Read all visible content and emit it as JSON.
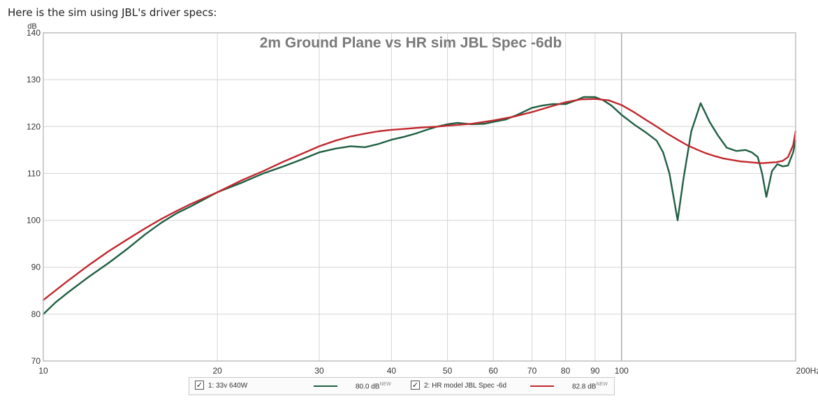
{
  "intro_text": "Here is the sim using JBL's driver specs:",
  "chart_data": {
    "type": "line",
    "title": "2m Ground Plane vs HR sim JBL Spec -6db",
    "ylabel": "dB",
    "xlabel": "",
    "xscale": "log",
    "xlim": [
      10,
      200
    ],
    "ylim": [
      70,
      140
    ],
    "xticks": [
      10,
      20,
      30,
      40,
      50,
      60,
      70,
      80,
      90,
      100,
      200
    ],
    "xtick_labels": [
      "10",
      "20",
      "30",
      "40",
      "50",
      "60",
      "70",
      "80",
      "90",
      "100",
      "200Hz"
    ],
    "yticks": [
      70,
      80,
      90,
      100,
      110,
      120,
      130,
      140
    ],
    "ytick_labels": [
      "70",
      "80",
      "90",
      "100",
      "110",
      "120",
      "130",
      "140"
    ],
    "grid": true,
    "series": [
      {
        "name": "1: 33v 640W",
        "level": "80.0 dB",
        "level_tag": "NEW",
        "color": "#1f5f43",
        "x": [
          10,
          10.5,
          11,
          12,
          13,
          14,
          15,
          16,
          17,
          18,
          20,
          22,
          24,
          26,
          28,
          30,
          32,
          34,
          36,
          38,
          40,
          42,
          44,
          46,
          48,
          50,
          52,
          55,
          58,
          60,
          63,
          66,
          70,
          73,
          76,
          80,
          83,
          86,
          90,
          93,
          96,
          100,
          105,
          110,
          115,
          118,
          121,
          123,
          125,
          128,
          132,
          137,
          142,
          147,
          152,
          158,
          164,
          168,
          172,
          175,
          178,
          182,
          186,
          190,
          194,
          198,
          200
        ],
        "y": [
          80,
          82.5,
          84.5,
          88,
          91,
          94,
          97,
          99.5,
          101.5,
          103,
          106,
          108,
          110,
          111.5,
          113,
          114.5,
          115.3,
          115.8,
          115.6,
          116.3,
          117.2,
          117.8,
          118.5,
          119.3,
          120,
          120.5,
          120.8,
          120.5,
          120.6,
          121,
          121.5,
          122.5,
          124,
          124.5,
          124.8,
          124.8,
          125.5,
          126.3,
          126.3,
          125.6,
          124.5,
          122.5,
          120.5,
          118.8,
          117,
          114.5,
          110,
          105,
          100,
          109,
          119,
          125,
          121,
          118,
          115.5,
          114.8,
          115,
          114.5,
          113.5,
          110,
          105,
          110.5,
          112,
          111.5,
          111.7,
          114.5,
          117
        ]
      },
      {
        "name": "2: HR model JBL Spec -6d",
        "level": "82.8 dB",
        "level_tag": "NEW",
        "color": "#c0282d",
        "x": [
          10,
          11,
          12,
          13,
          14,
          15,
          16,
          17,
          18,
          20,
          22,
          24,
          26,
          28,
          30,
          32,
          34,
          36,
          38,
          40,
          42,
          45,
          48,
          50,
          55,
          60,
          65,
          70,
          75,
          80,
          85,
          90,
          95,
          100,
          105,
          110,
          115,
          120,
          125,
          130,
          135,
          140,
          145,
          150,
          160,
          170,
          175,
          180,
          185,
          190,
          194,
          198,
          200
        ],
        "y": [
          83,
          87,
          90.5,
          93.5,
          96,
          98.3,
          100.3,
          102,
          103.5,
          106,
          108.5,
          110.5,
          112.5,
          114.2,
          115.8,
          117,
          117.9,
          118.5,
          119,
          119.3,
          119.5,
          119.8,
          120,
          120.2,
          120.6,
          121.3,
          122.1,
          123.1,
          124.2,
          125.2,
          125.8,
          125.9,
          125.6,
          124.6,
          123.1,
          121.5,
          120,
          118.5,
          117.2,
          116,
          115.1,
          114.3,
          113.7,
          113.2,
          112.6,
          112.3,
          112.2,
          112.3,
          112.4,
          112.7,
          113.5,
          116,
          119
        ]
      }
    ]
  }
}
